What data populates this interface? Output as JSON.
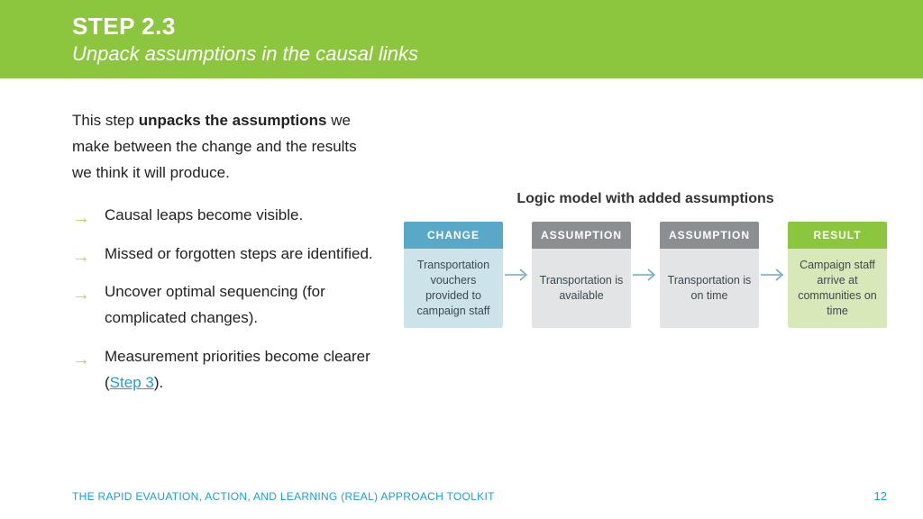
{
  "colors": {
    "header_bg": "#8cc63f",
    "header_text": "#ffffff",
    "body_text": "#222222",
    "bullet_arrow": "#b7d65a",
    "link": "#1a9fd8",
    "footer": "#1a9fd8",
    "diag_title": "#333333",
    "change_hd_bg": "#5aa8c8",
    "change_hd_text": "#ffffff",
    "change_bd_bg": "#cde3ea",
    "change_bd_text": "#3b4a50",
    "assump_hd_bg": "#8b8f91",
    "assump_hd_text": "#ffffff",
    "assump_bd_bg": "#e3e4e5",
    "assump_bd_text": "#3b4a50",
    "result_hd_bg": "#8cc63f",
    "result_hd_text": "#ffffff",
    "result_bd_bg": "#d9e8b9",
    "result_bd_text": "#3b4a50",
    "conn_arrow": "#6aa8bf"
  },
  "fonts": {
    "h1_size": 26,
    "h2_size": 22,
    "body_size": 17,
    "diag_title_size": 16
  },
  "header": {
    "title": "STEP 2.3",
    "subtitle": "Unpack assumptions in the causal links"
  },
  "intro": {
    "pre": "This step ",
    "bold": "unpacks the assumptions",
    "post": " we make between the change and the results we think it will produce."
  },
  "bullets": [
    {
      "text": "Causal leaps become visible."
    },
    {
      "text": "Missed or forgotten steps are identified."
    },
    {
      "text": "Uncover optimal sequencing (for complicated changes)."
    },
    {
      "pre": "Measurement priorities become clearer (",
      "link": "Step 3",
      "post": ")."
    }
  ],
  "diagram": {
    "title": "Logic model with added assumptions",
    "boxes": [
      {
        "kind": "change",
        "hd": "CHANGE",
        "bd": "Transportation vouchers provided to campaign staff"
      },
      {
        "kind": "assump",
        "hd": "ASSUMPTION",
        "bd": "Transportation is available"
      },
      {
        "kind": "assump",
        "hd": "ASSUMPTION",
        "bd": "Transportation is on time"
      },
      {
        "kind": "result",
        "hd": "RESULT",
        "bd": "Campaign staff arrive at communities on time"
      }
    ]
  },
  "footer": {
    "text": "THE RAPID EVAUATION, ACTION, AND LEARNING (REAL) APPROACH TOOLKIT",
    "page": "12"
  }
}
